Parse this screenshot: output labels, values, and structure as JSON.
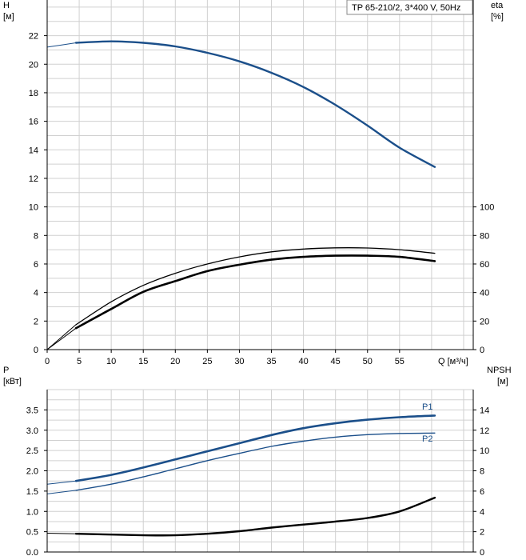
{
  "chart_data": [
    {
      "type": "line",
      "legend_text": "TP 65-210/2, 3*400 V, 50Hz",
      "y_left_label": "H",
      "y_left_unit": "[м]",
      "y_right_label": "eta",
      "y_right_unit": "[%]",
      "x_label": "Q [м³/ч]",
      "x_ticks": [
        "0",
        "5",
        "10",
        "15",
        "20",
        "25",
        "30",
        "35",
        "40",
        "45",
        "50",
        "55"
      ],
      "y_left_ticks": [
        "0",
        "2",
        "4",
        "6",
        "8",
        "10",
        "12",
        "14",
        "16",
        "18",
        "20",
        "22"
      ],
      "y_right_ticks": [
        "0",
        "20",
        "40",
        "60",
        "80",
        "100"
      ],
      "xlim": [
        0,
        66.5
      ],
      "ylim_left": [
        0,
        24.5
      ],
      "ylim_right": [
        0,
        100
      ],
      "series": [
        {
          "color": "#1b4f8a",
          "x": [
            0,
            4.5,
            10,
            15,
            20,
            25,
            30,
            35,
            40,
            45,
            50,
            55,
            60.5
          ],
          "y": [
            21.2,
            21.5,
            21.6,
            21.5,
            21.25,
            20.8,
            20.2,
            19.4,
            18.4,
            17.15,
            15.7,
            14.15,
            12.8
          ]
        },
        {
          "color": "#000000",
          "x": [
            0,
            4.5,
            10,
            15,
            20,
            25,
            30,
            35,
            40,
            45,
            50,
            55,
            60.5
          ],
          "y": [
            0,
            17.5,
            33.5,
            45,
            53.5,
            60,
            65,
            68.5,
            70.5,
            71.3,
            71.2,
            70,
            67.5
          ]
        },
        {
          "color": "#000000",
          "x": [
            0,
            4.5,
            10,
            15,
            20,
            25,
            30,
            35,
            40,
            45,
            50,
            55,
            60.5
          ],
          "y": [
            0,
            15,
            28.5,
            40.5,
            48,
            55,
            59.5,
            63,
            65,
            65.8,
            65.8,
            65,
            62
          ]
        }
      ]
    },
    {
      "type": "line",
      "y_left_label": "P",
      "y_left_unit": "[кВт]",
      "y_right_label": "NPSH",
      "y_right_unit": "[м]",
      "y_left_ticks": [
        "0.0",
        "0.5",
        "1.0",
        "1.5",
        "2.0",
        "2.5",
        "3.0",
        "3.5"
      ],
      "y_right_ticks": [
        "0",
        "2",
        "4",
        "6",
        "8",
        "10",
        "12",
        "14"
      ],
      "xlim": [
        0,
        66.5
      ],
      "ylim_left": [
        0,
        4.0
      ],
      "ylim_right": [
        0,
        16
      ],
      "series": [
        {
          "name": "P1",
          "color": "#1b4f8a",
          "x": [
            0,
            4.5,
            10,
            15,
            20,
            25,
            30,
            35,
            40,
            45,
            50,
            55,
            60.5
          ],
          "y": [
            1.67,
            1.75,
            1.9,
            2.08,
            2.28,
            2.48,
            2.68,
            2.88,
            3.05,
            3.17,
            3.26,
            3.32,
            3.36
          ]
        },
        {
          "name": "P2",
          "color": "#1b4f8a",
          "x": [
            0,
            4.5,
            10,
            15,
            20,
            25,
            30,
            35,
            40,
            45,
            50,
            55,
            60.5
          ],
          "y": [
            1.43,
            1.52,
            1.67,
            1.85,
            2.05,
            2.25,
            2.43,
            2.6,
            2.73,
            2.83,
            2.89,
            2.92,
            2.93
          ]
        },
        {
          "color": "#000000",
          "x": [
            0,
            4.5,
            10,
            15,
            20,
            25,
            30,
            35,
            40,
            45,
            50,
            55,
            60.5
          ],
          "y": [
            1.85,
            1.8,
            1.72,
            1.65,
            1.65,
            1.8,
            2.05,
            2.4,
            2.7,
            3.0,
            3.35,
            4.0,
            5.35
          ]
        }
      ]
    }
  ]
}
